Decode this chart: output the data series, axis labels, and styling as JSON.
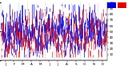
{
  "bg_color": "#ffffff",
  "plot_bg_color": "#ffffff",
  "grid_color": "#aaaaaa",
  "ylim": [
    0,
    100
  ],
  "yticks": [
    10,
    20,
    30,
    40,
    50,
    60,
    70,
    80,
    90,
    100
  ],
  "num_days": 365,
  "blue_color": "#0000dd",
  "red_color": "#dd0000",
  "seed": 42,
  "month_days": [
    0,
    31,
    59,
    90,
    120,
    151,
    181,
    212,
    243,
    273,
    304,
    334
  ],
  "month_labels": [
    "J",
    "F",
    "M",
    "A",
    "M",
    "J",
    "J",
    "A",
    "S",
    "O",
    "N",
    "D"
  ],
  "month_centers": [
    15,
    45,
    74,
    105,
    135,
    166,
    196,
    227,
    258,
    288,
    319,
    349
  ]
}
